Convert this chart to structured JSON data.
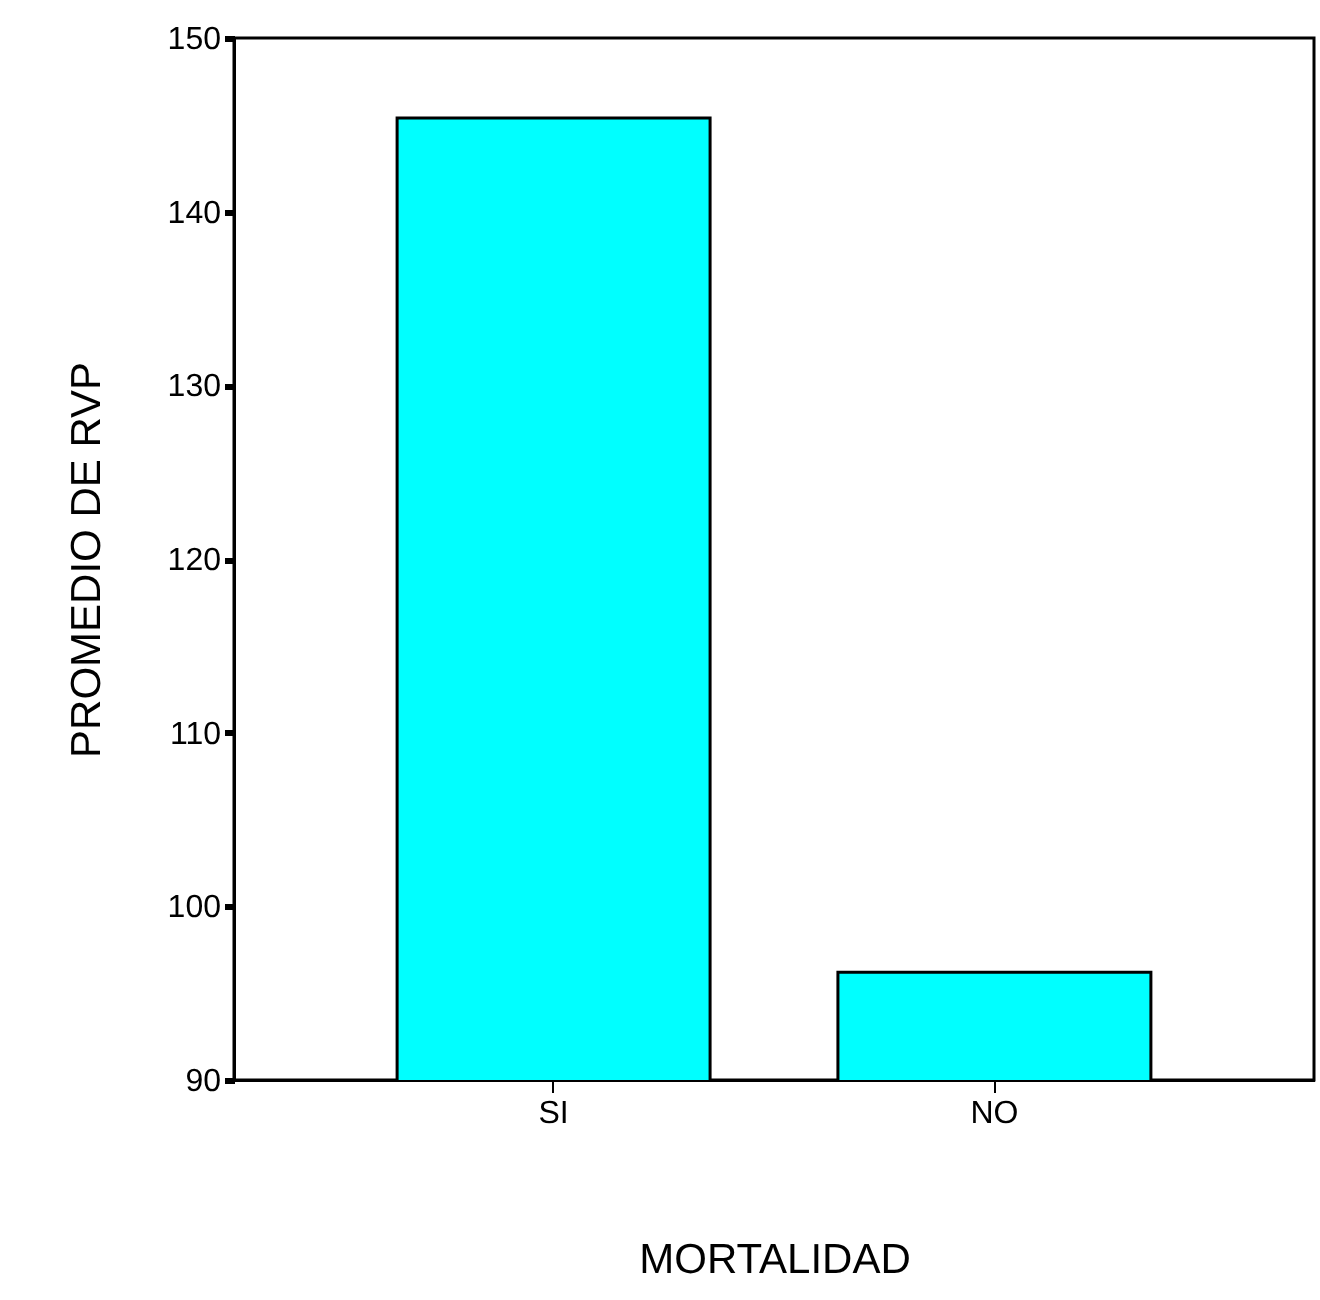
{
  "chart_data": {
    "type": "bar",
    "xlabel": "MORTALIDAD",
    "ylabel": "PROMEDIO DE RVP",
    "categories": [
      "SI",
      "NO"
    ],
    "values": [
      145.4,
      96.2
    ],
    "color": "#00ffff",
    "ylim": [
      90,
      150
    ],
    "yticks": [
      90,
      100,
      110,
      120,
      130,
      140,
      150
    ],
    "grid": false
  }
}
